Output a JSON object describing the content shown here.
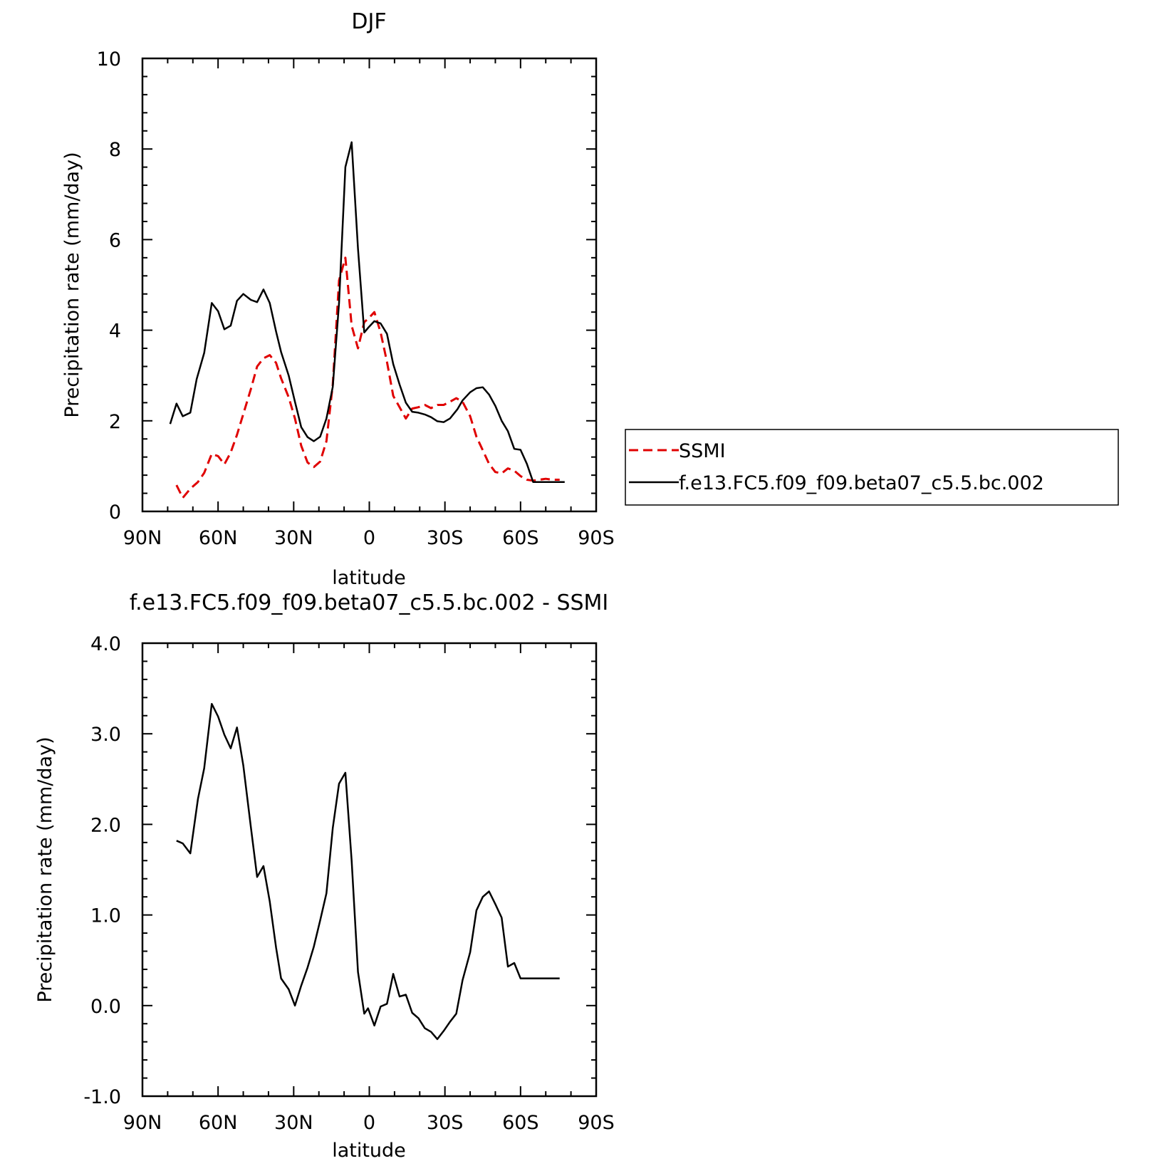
{
  "chart_data": [
    {
      "type": "line",
      "title": "DJF",
      "xlabel": "latitude",
      "ylabel": "Precipitation rate (mm/day)",
      "xlim": [
        90,
        -90
      ],
      "ylim": [
        0,
        10
      ],
      "xticks": [
        {
          "v": 90,
          "label": "90N"
        },
        {
          "v": 60,
          "label": "60N"
        },
        {
          "v": 30,
          "label": "30N"
        },
        {
          "v": 0,
          "label": "0"
        },
        {
          "v": -30,
          "label": "30S"
        },
        {
          "v": -60,
          "label": "60S"
        },
        {
          "v": -90,
          "label": "90S"
        }
      ],
      "yticks": [
        {
          "v": 0,
          "label": "0"
        },
        {
          "v": 2,
          "label": "2"
        },
        {
          "v": 4,
          "label": "4"
        },
        {
          "v": 6,
          "label": "6"
        },
        {
          "v": 8,
          "label": "8"
        },
        {
          "v": 10,
          "label": "10"
        }
      ],
      "legend": "right",
      "series": [
        {
          "name": "SSMI",
          "color": "#e00000",
          "dash": true,
          "x": [
            76.5,
            74,
            71,
            68,
            65.5,
            62.5,
            60,
            57.5,
            55,
            52.5,
            50,
            47,
            44.5,
            42,
            39.5,
            37,
            35,
            32,
            29.5,
            27,
            24.5,
            22,
            19.5,
            17,
            14.5,
            12,
            9.5,
            7,
            4.5,
            2,
            0.5,
            -2,
            -4.5,
            -7,
            -9.5,
            -12,
            -14.5,
            -17,
            -19.5,
            -22,
            -24.5,
            -27,
            -29.5,
            -32,
            -34.5,
            -37,
            -40,
            -42.5,
            -45,
            -47.5,
            -50,
            -52.5,
            -55,
            -57.5,
            -60,
            -62.5,
            -65,
            -67.5,
            -70,
            -72.5,
            -75.5
          ],
          "y": [
            0.58,
            0.3,
            0.5,
            0.65,
            0.85,
            1.27,
            1.22,
            1.04,
            1.3,
            1.69,
            2.15,
            2.7,
            3.2,
            3.38,
            3.45,
            3.28,
            2.94,
            2.52,
            2.05,
            1.45,
            1.08,
            0.98,
            1.1,
            1.55,
            2.8,
            5.1,
            5.6,
            4.1,
            3.6,
            4.18,
            4.25,
            4.4,
            3.95,
            3.3,
            2.55,
            2.3,
            2.05,
            2.27,
            2.3,
            2.35,
            2.28,
            2.35,
            2.35,
            2.42,
            2.5,
            2.42,
            2.1,
            1.65,
            1.35,
            1.05,
            0.87,
            0.84,
            0.95,
            0.9,
            0.78,
            0.7,
            0.68,
            0.7,
            0.72,
            0.7,
            0.7
          ]
        },
        {
          "name": "f.e13.FC5.f09_f09.beta07_c5.5.bc.002",
          "color": "#000000",
          "dash": false,
          "x": [
            79,
            76.5,
            74,
            71,
            68.5,
            65.5,
            62.5,
            60,
            57.5,
            55,
            52.5,
            50,
            47,
            44.5,
            42,
            39.5,
            37,
            35,
            32,
            29.5,
            27,
            24.5,
            22,
            19.5,
            17,
            14.5,
            12,
            9.5,
            7,
            4.5,
            2,
            0.5,
            -2,
            -4.5,
            -7,
            -9.5,
            -12,
            -14.5,
            -17,
            -19.5,
            -22,
            -24.5,
            -27,
            -29.5,
            -32,
            -35,
            -37,
            -40,
            -42.5,
            -45,
            -47.5,
            -50,
            -52.5,
            -55,
            -57.5,
            -60,
            -62.5,
            -65,
            -67.5,
            -70,
            -72.5,
            -75,
            -77.5
          ],
          "y": [
            1.93,
            2.38,
            2.1,
            2.18,
            2.92,
            3.5,
            4.6,
            4.42,
            4.02,
            4.1,
            4.65,
            4.8,
            4.67,
            4.62,
            4.9,
            4.6,
            3.97,
            3.52,
            3.0,
            2.42,
            1.86,
            1.64,
            1.55,
            1.65,
            2.05,
            2.75,
            4.6,
            7.6,
            8.15,
            5.8,
            3.95,
            4.05,
            4.2,
            4.15,
            3.92,
            3.25,
            2.8,
            2.4,
            2.2,
            2.18,
            2.14,
            2.08,
            1.99,
            1.97,
            2.05,
            2.26,
            2.45,
            2.63,
            2.72,
            2.74,
            2.58,
            2.33,
            2.0,
            1.77,
            1.38,
            1.36,
            1.05,
            0.65,
            0.65,
            0.65,
            0.65,
            0.65,
            0.65
          ]
        }
      ]
    },
    {
      "type": "line",
      "title": "f.e13.FC5.f09_f09.beta07_c5.5.bc.002 - SSMI",
      "xlabel": "latitude",
      "ylabel": "Precipitation rate (mm/day)",
      "xlim": [
        90,
        -90
      ],
      "ylim": [
        -1,
        4
      ],
      "xticks": [
        {
          "v": 90,
          "label": "90N"
        },
        {
          "v": 60,
          "label": "60N"
        },
        {
          "v": 30,
          "label": "30N"
        },
        {
          "v": 0,
          "label": "0"
        },
        {
          "v": -30,
          "label": "30S"
        },
        {
          "v": -60,
          "label": "60S"
        },
        {
          "v": -90,
          "label": "90S"
        }
      ],
      "yticks": [
        {
          "v": -1,
          "label": "-1.0"
        },
        {
          "v": 0,
          "label": "0.0"
        },
        {
          "v": 1,
          "label": "1.0"
        },
        {
          "v": 2,
          "label": "2.0"
        },
        {
          "v": 3,
          "label": "3.0"
        },
        {
          "v": 4,
          "label": "4.0"
        }
      ],
      "series": [
        {
          "color": "#000000",
          "dash": false,
          "x": [
            76.5,
            74,
            71,
            68,
            65.5,
            62.5,
            60,
            57.5,
            55,
            52.5,
            50,
            47,
            44.5,
            42,
            39.5,
            37,
            35,
            32,
            29.5,
            27,
            24.5,
            22,
            19.5,
            17,
            14.5,
            12,
            9.5,
            7,
            4.5,
            2,
            0.5,
            -2,
            -4.5,
            -7,
            -9.5,
            -12,
            -14.5,
            -17,
            -19.5,
            -22,
            -24.5,
            -27,
            -29.5,
            -32,
            -34.5,
            -37,
            -40,
            -42.5,
            -45,
            -47.5,
            -50,
            -52.5,
            -55,
            -57.5,
            -60,
            -62.5,
            -65,
            -67.5,
            -70,
            -72.5,
            -75.5
          ],
          "y": [
            1.82,
            1.79,
            1.68,
            2.28,
            2.62,
            3.33,
            3.19,
            2.99,
            2.84,
            3.07,
            2.65,
            1.97,
            1.42,
            1.54,
            1.15,
            0.64,
            0.3,
            0.18,
            0.0,
            0.22,
            0.42,
            0.65,
            0.94,
            1.24,
            1.96,
            2.45,
            2.57,
            1.6,
            0.37,
            -0.09,
            -0.03,
            -0.22,
            -0.01,
            0.02,
            0.35,
            0.1,
            0.12,
            -0.08,
            -0.14,
            -0.25,
            -0.29,
            -0.37,
            -0.28,
            -0.18,
            -0.09,
            0.28,
            0.59,
            1.05,
            1.2,
            1.26,
            1.12,
            0.97,
            0.43,
            0.47,
            0.3,
            0.3,
            0.3,
            0.3,
            0.3,
            0.3,
            0.3
          ]
        }
      ]
    }
  ]
}
